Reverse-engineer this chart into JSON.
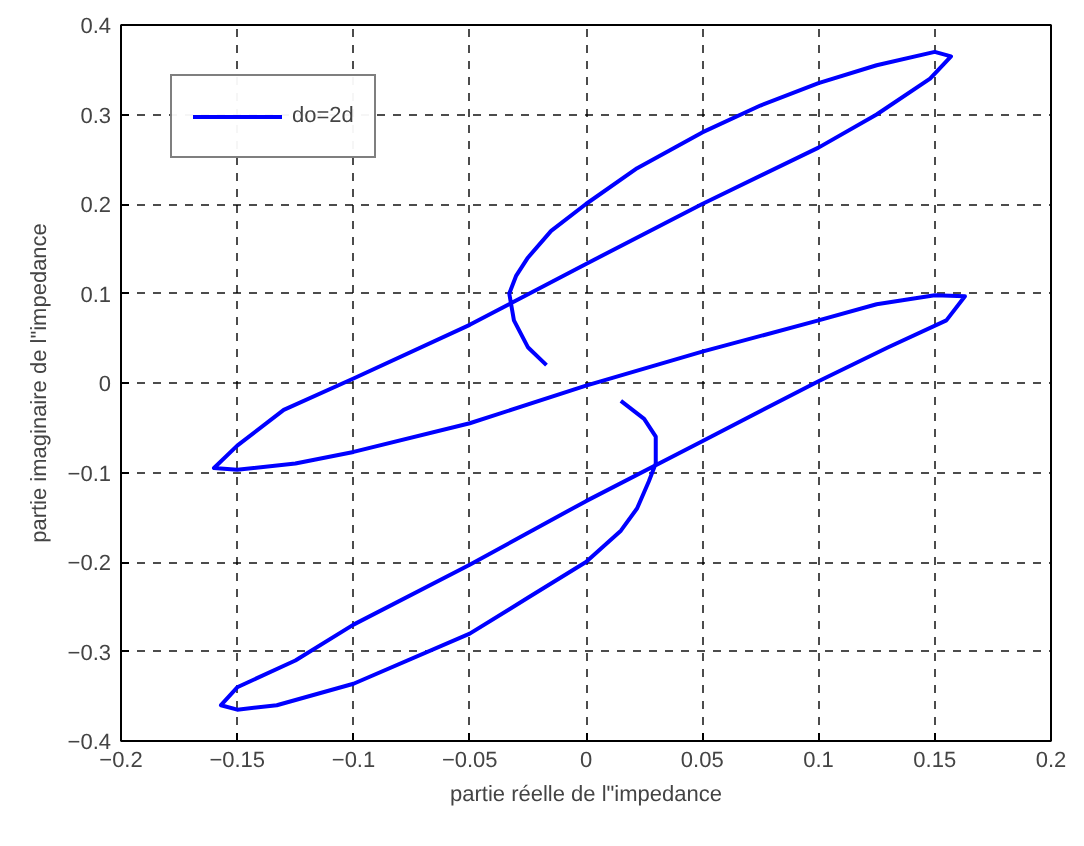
{
  "chart_data": {
    "type": "line",
    "xlabel": "partie réelle de l\"impedance",
    "ylabel": "partie imaginaire de l\"impedance",
    "xlim": [
      -0.2,
      0.2
    ],
    "ylim": [
      -0.4,
      0.4
    ],
    "xticks": [
      -0.2,
      -0.15,
      -0.1,
      -0.05,
      0,
      0.05,
      0.1,
      0.15,
      0.2
    ],
    "yticks": [
      -0.4,
      -0.3,
      -0.2,
      -0.1,
      0,
      0.1,
      0.2,
      0.3,
      0.4
    ],
    "grid": true,
    "legend": "top left",
    "line_style": "solid",
    "marker": "none",
    "series": [
      {
        "name": "do=2d",
        "color": "#0000ff",
        "x": [
          -0.017,
          -0.025,
          -0.031,
          -0.033,
          -0.03,
          -0.025,
          -0.015,
          0,
          0.022,
          0.05,
          0.075,
          0.1,
          0.125,
          0.15,
          0.157,
          0.148,
          0.125,
          0.1,
          0.05,
          0,
          -0.05,
          -0.1,
          -0.13,
          -0.15,
          -0.16,
          -0.15,
          -0.125,
          -0.1,
          -0.05,
          0,
          0.05,
          0.1,
          0.125,
          0.15,
          0.163,
          0.155,
          0.13,
          0.1,
          0.05,
          0,
          -0.05,
          -0.1,
          -0.125,
          -0.15,
          -0.157,
          -0.15,
          -0.133,
          -0.1,
          -0.05,
          -0.025,
          0,
          0.015,
          0.022,
          0.027,
          0.03,
          0.03,
          0.025,
          0.015
        ],
        "values": [
          0.02,
          0.04,
          0.07,
          0.1,
          0.12,
          0.14,
          0.17,
          0.2,
          0.24,
          0.28,
          0.31,
          0.335,
          0.355,
          0.37,
          0.365,
          0.34,
          0.3,
          0.263,
          0.2,
          0.133,
          0.065,
          0.005,
          -0.03,
          -0.07,
          -0.095,
          -0.097,
          -0.09,
          -0.077,
          -0.045,
          -0.003,
          0.035,
          0.07,
          0.088,
          0.098,
          0.097,
          0.07,
          0.04,
          0.002,
          -0.065,
          -0.132,
          -0.203,
          -0.27,
          -0.31,
          -0.34,
          -0.36,
          -0.365,
          -0.36,
          -0.336,
          -0.28,
          -0.24,
          -0.2,
          -0.165,
          -0.14,
          -0.11,
          -0.09,
          -0.06,
          -0.04,
          -0.02
        ]
      }
    ]
  }
}
